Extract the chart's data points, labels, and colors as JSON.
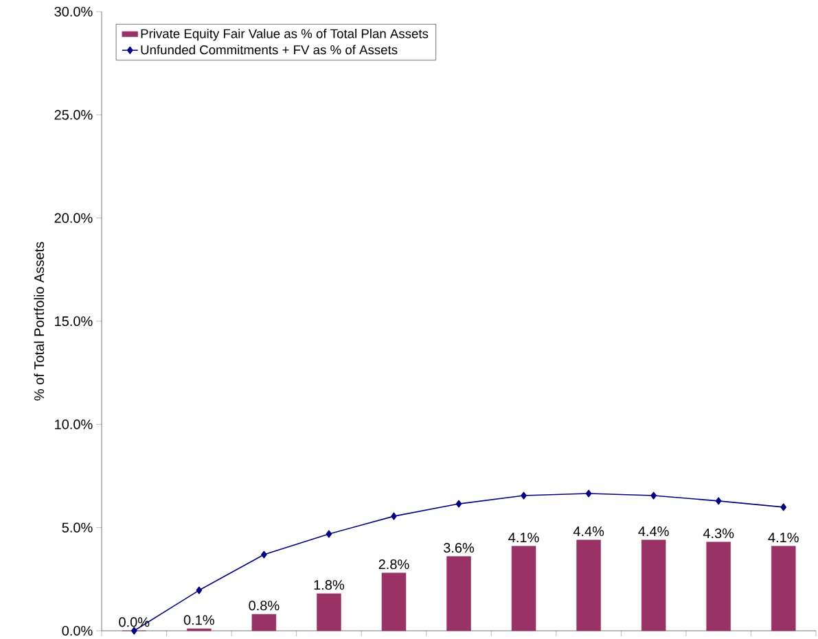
{
  "chart_data": {
    "type": "bar",
    "ylabel": "% of Total Portfolio Assets",
    "categories": [
      null,
      null,
      null,
      null,
      null,
      null,
      null,
      null,
      null,
      null,
      null
    ],
    "series": [
      {
        "name": "Private Equity Fair Value as % of Total Plan Assets",
        "color": "#993366",
        "values": [
          0.0,
          0.1,
          0.8,
          1.8,
          2.8,
          3.6,
          4.1,
          4.4,
          4.4,
          4.3,
          4.1
        ],
        "value_labels": [
          "0.0%",
          "0.1%",
          "0.8%",
          "1.8%",
          "2.8%",
          "3.6%",
          "4.1%",
          "4.4%",
          "4.4%",
          "4.3%",
          "4.1%"
        ]
      },
      {
        "name": "Unfunded Commitments + FV as % of Assets",
        "type": "line",
        "color": "#000080",
        "values": [
          0.0,
          1.96,
          3.69,
          4.69,
          5.55,
          6.15,
          6.55,
          6.65,
          6.55,
          6.29,
          5.99
        ]
      }
    ],
    "ylim": [
      0,
      30
    ],
    "yticks": [
      {
        "value": 0,
        "label": "0.0%"
      },
      {
        "value": 5,
        "label": "5.0%"
      },
      {
        "value": 10,
        "label": "10.0%"
      },
      {
        "value": 15,
        "label": "15.0%"
      },
      {
        "value": 20,
        "label": "20.0%"
      },
      {
        "value": 25,
        "label": "25.0%"
      },
      {
        "value": 30,
        "label": "30.0%"
      }
    ],
    "marker": "diamond",
    "legend": "top left",
    "grid": false
  }
}
